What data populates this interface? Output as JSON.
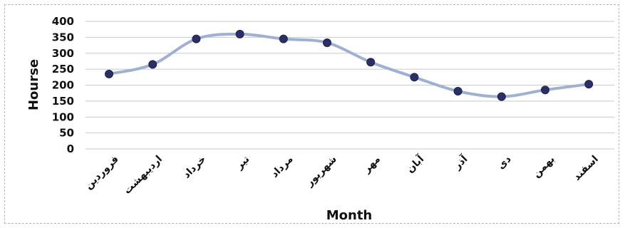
{
  "chart_data": {
    "type": "line",
    "title": "",
    "xlabel": "Month",
    "ylabel": "Hourse",
    "ylim": [
      0,
      400
    ],
    "yticks": [
      0,
      50,
      100,
      150,
      200,
      250,
      300,
      350,
      400
    ],
    "grid": true,
    "legend": "none",
    "categories": [
      "فروردین",
      "اردیبهشت",
      "خرداد",
      "تیر",
      "مرداد",
      "شهریور",
      "مهر",
      "آبان",
      "آذر",
      "دی",
      "بهمن",
      "اسفند"
    ],
    "series": [
      {
        "values": [
          235,
          265,
          345,
          360,
          345,
          333,
          272,
          225,
          181,
          164,
          185,
          203
        ],
        "color": "#9fb0d3",
        "marker_color": "#2a3064"
      }
    ]
  }
}
